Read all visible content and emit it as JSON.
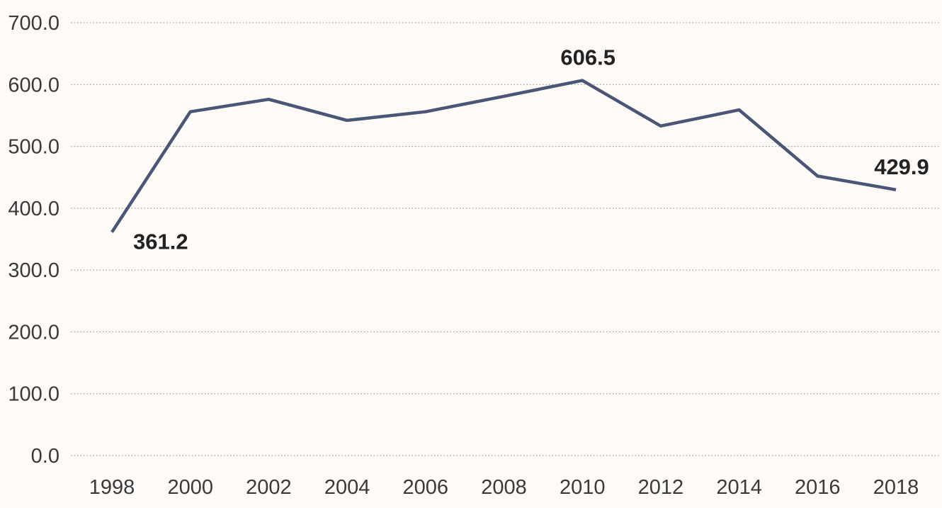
{
  "chart_data": {
    "type": "line",
    "x": [
      "1998",
      "2000",
      "2002",
      "2004",
      "2006",
      "2008",
      "2010",
      "2012",
      "2014",
      "2016",
      "2018"
    ],
    "series": [
      {
        "values": [
          361.2,
          556.0,
          576.0,
          542.0,
          556.0,
          581.0,
          606.5,
          533.0,
          559.0,
          452.0,
          429.9
        ]
      }
    ],
    "ylim": [
      0,
      700
    ],
    "yticks": [
      "0.0",
      "100.0",
      "200.0",
      "300.0",
      "400.0",
      "500.0",
      "600.0",
      "700.0"
    ],
    "xlabel": "",
    "ylabel": "",
    "grid": true,
    "legend": "none",
    "annotations": [
      {
        "index": 0,
        "text": "361.2",
        "placement": "below-right"
      },
      {
        "index": 6,
        "text": "606.5",
        "placement": "above"
      },
      {
        "index": 10,
        "text": "429.9",
        "placement": "above"
      }
    ]
  },
  "colors": {
    "line": "#4b5676",
    "grid": "#8a8a8a",
    "background": "#fdfaf8",
    "text": "#3a3a3a"
  }
}
